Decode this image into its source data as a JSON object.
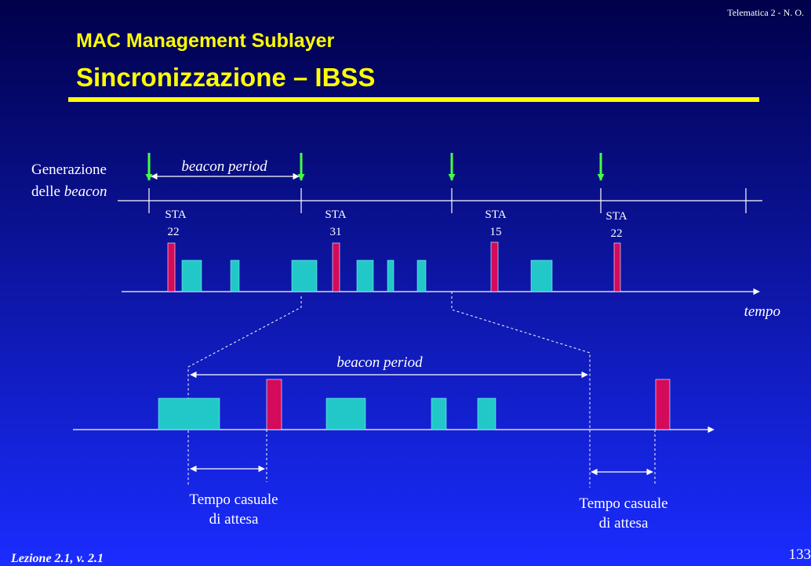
{
  "header": {
    "course": "Telematica 2 - N. O.",
    "title": "MAC Management Sublayer",
    "subtitle": "Sincronizzazione – IBSS"
  },
  "diagram": {
    "generation_line1": "Generazione",
    "generation_line2": "delle ",
    "generation_line2_em": "beacon",
    "beacon_period_top": "beacon period",
    "stations": [
      {
        "label": "STA",
        "id": "22"
      },
      {
        "label": "STA",
        "id": "31"
      },
      {
        "label": "STA",
        "id": "15"
      },
      {
        "label": "STA",
        "id": "22"
      }
    ],
    "time_label": "tempo",
    "beacon_period_zoom": "beacon period",
    "waits": [
      {
        "line1": "Tempo casuale",
        "line2": "di attesa"
      },
      {
        "line1": "Tempo casuale",
        "line2": "di attesa"
      }
    ]
  },
  "footer": {
    "lecture": "Lezione 2.1, v. 2.1",
    "page": "133"
  }
}
